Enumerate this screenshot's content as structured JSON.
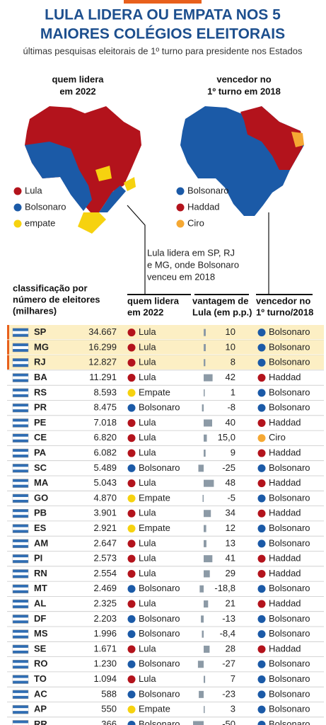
{
  "header": {
    "title": [
      "LULA LIDERA OU EMPATA NOS 5",
      "MAIORES COLÉGIOS ELEITORAIS"
    ],
    "subtitle": "últimas pesquisas eleitorais de 1º turno para presidente nos Estados"
  },
  "maps": {
    "left_title": [
      "quem lidera",
      "em 2022"
    ],
    "right_title": [
      "vencedor no",
      "1º turno em 2018"
    ],
    "left_legend": [
      {
        "name": "Lula",
        "color": "#b3131c"
      },
      {
        "name": "Bolsonaro",
        "color": "#1b5aa7"
      },
      {
        "name": "empate",
        "color": "#f6d20f"
      }
    ],
    "right_legend": [
      {
        "name": "Bolsonaro",
        "color": "#1b5aa7"
      },
      {
        "name": "Haddad",
        "color": "#b3131c"
      },
      {
        "name": "Ciro",
        "color": "#f5a833"
      }
    ],
    "annotation": [
      "Lula lidera em SP, RJ",
      "e MG, onde Bolsonaro",
      "venceu em 2018"
    ]
  },
  "table": {
    "headers": {
      "rank": [
        "classificação  por",
        "número de eleitores",
        "(milhares)"
      ],
      "leader": [
        "quem lidera",
        "em 2022"
      ],
      "margin": [
        "vantagem de",
        "Lula (em p.p.)"
      ],
      "winner": [
        "vencedor no",
        "1º turno/2018"
      ]
    },
    "colors": {
      "Lula": "#b3131c",
      "Bolsonaro": "#1b5aa7",
      "Empate": "#f6d20f",
      "Haddad": "#b3131c",
      "Ciro": "#f5a833"
    },
    "bar_color": "#8c9aa6",
    "rows": [
      {
        "uf": "SP",
        "electors": "34.667",
        "leader": "Lula",
        "margin": 10,
        "winner": "Bolsonaro",
        "highlighted": true
      },
      {
        "uf": "MG",
        "electors": "16.299",
        "leader": "Lula",
        "margin": 10,
        "winner": "Bolsonaro",
        "highlighted": true
      },
      {
        "uf": "RJ",
        "electors": "12.827",
        "leader": "Lula",
        "margin": 8,
        "winner": "Bolsonaro",
        "highlighted": true
      },
      {
        "uf": "BA",
        "electors": "11.291",
        "leader": "Lula",
        "margin": 42,
        "winner": "Haddad"
      },
      {
        "uf": "RS",
        "electors": "8.593",
        "leader": "Empate",
        "margin": 1,
        "winner": "Bolsonaro"
      },
      {
        "uf": "PR",
        "electors": "8.475",
        "leader": "Bolsonaro",
        "margin": -8,
        "winner": "Bolsonaro"
      },
      {
        "uf": "PE",
        "electors": "7.018",
        "leader": "Lula",
        "margin": 40,
        "winner": "Haddad"
      },
      {
        "uf": "CE",
        "electors": "6.820",
        "leader": "Lula",
        "margin": 15.0,
        "margin_label": "15,0",
        "winner": "Ciro"
      },
      {
        "uf": "PA",
        "electors": "6.082",
        "leader": "Lula",
        "margin": 9,
        "winner": "Haddad"
      },
      {
        "uf": "SC",
        "electors": "5.489",
        "leader": "Bolsonaro",
        "margin": -25,
        "winner": "Bolsonaro"
      },
      {
        "uf": "MA",
        "electors": "5.043",
        "leader": "Lula",
        "margin": 48,
        "winner": "Haddad"
      },
      {
        "uf": "GO",
        "electors": "4.870",
        "leader": "Empate",
        "margin": -5,
        "winner": "Bolsonaro"
      },
      {
        "uf": "PB",
        "electors": "3.901",
        "leader": "Lula",
        "margin": 34,
        "winner": "Haddad"
      },
      {
        "uf": "ES",
        "electors": "2.921",
        "leader": "Empate",
        "margin": 12,
        "winner": "Bolsonaro"
      },
      {
        "uf": "AM",
        "electors": "2.647",
        "leader": "Lula",
        "margin": 13,
        "winner": "Bolsonaro"
      },
      {
        "uf": "PI",
        "electors": "2.573",
        "leader": "Lula",
        "margin": 41,
        "winner": "Haddad"
      },
      {
        "uf": "RN",
        "electors": "2.554",
        "leader": "Lula",
        "margin": 29,
        "winner": "Haddad"
      },
      {
        "uf": "MT",
        "electors": "2.469",
        "leader": "Bolsonaro",
        "margin": -18.8,
        "margin_label": "-18,8",
        "winner": "Bolsonaro"
      },
      {
        "uf": "AL",
        "electors": "2.325",
        "leader": "Lula",
        "margin": 21,
        "winner": "Haddad"
      },
      {
        "uf": "DF",
        "electors": "2.203",
        "leader": "Bolsonaro",
        "margin": -13,
        "winner": "Bolsonaro"
      },
      {
        "uf": "MS",
        "electors": "1.996",
        "leader": "Bolsonaro",
        "margin": -8.4,
        "margin_label": "-8,4",
        "winner": "Bolsonaro"
      },
      {
        "uf": "SE",
        "electors": "1.671",
        "leader": "Lula",
        "margin": 28,
        "winner": "Haddad"
      },
      {
        "uf": "RO",
        "electors": "1.230",
        "leader": "Bolsonaro",
        "margin": -27,
        "winner": "Bolsonaro"
      },
      {
        "uf": "TO",
        "electors": "1.094",
        "leader": "Lula",
        "margin": 7,
        "winner": "Bolsonaro"
      },
      {
        "uf": "AC",
        "electors": "588",
        "leader": "Bolsonaro",
        "margin": -23,
        "winner": "Bolsonaro"
      },
      {
        "uf": "AP",
        "electors": "550",
        "leader": "Empate",
        "margin": 3,
        "winner": "Bolsonaro"
      },
      {
        "uf": "RR",
        "electors": "366",
        "leader": "Bolsonaro",
        "margin": -50,
        "winner": "Bolsonaro"
      }
    ]
  }
}
